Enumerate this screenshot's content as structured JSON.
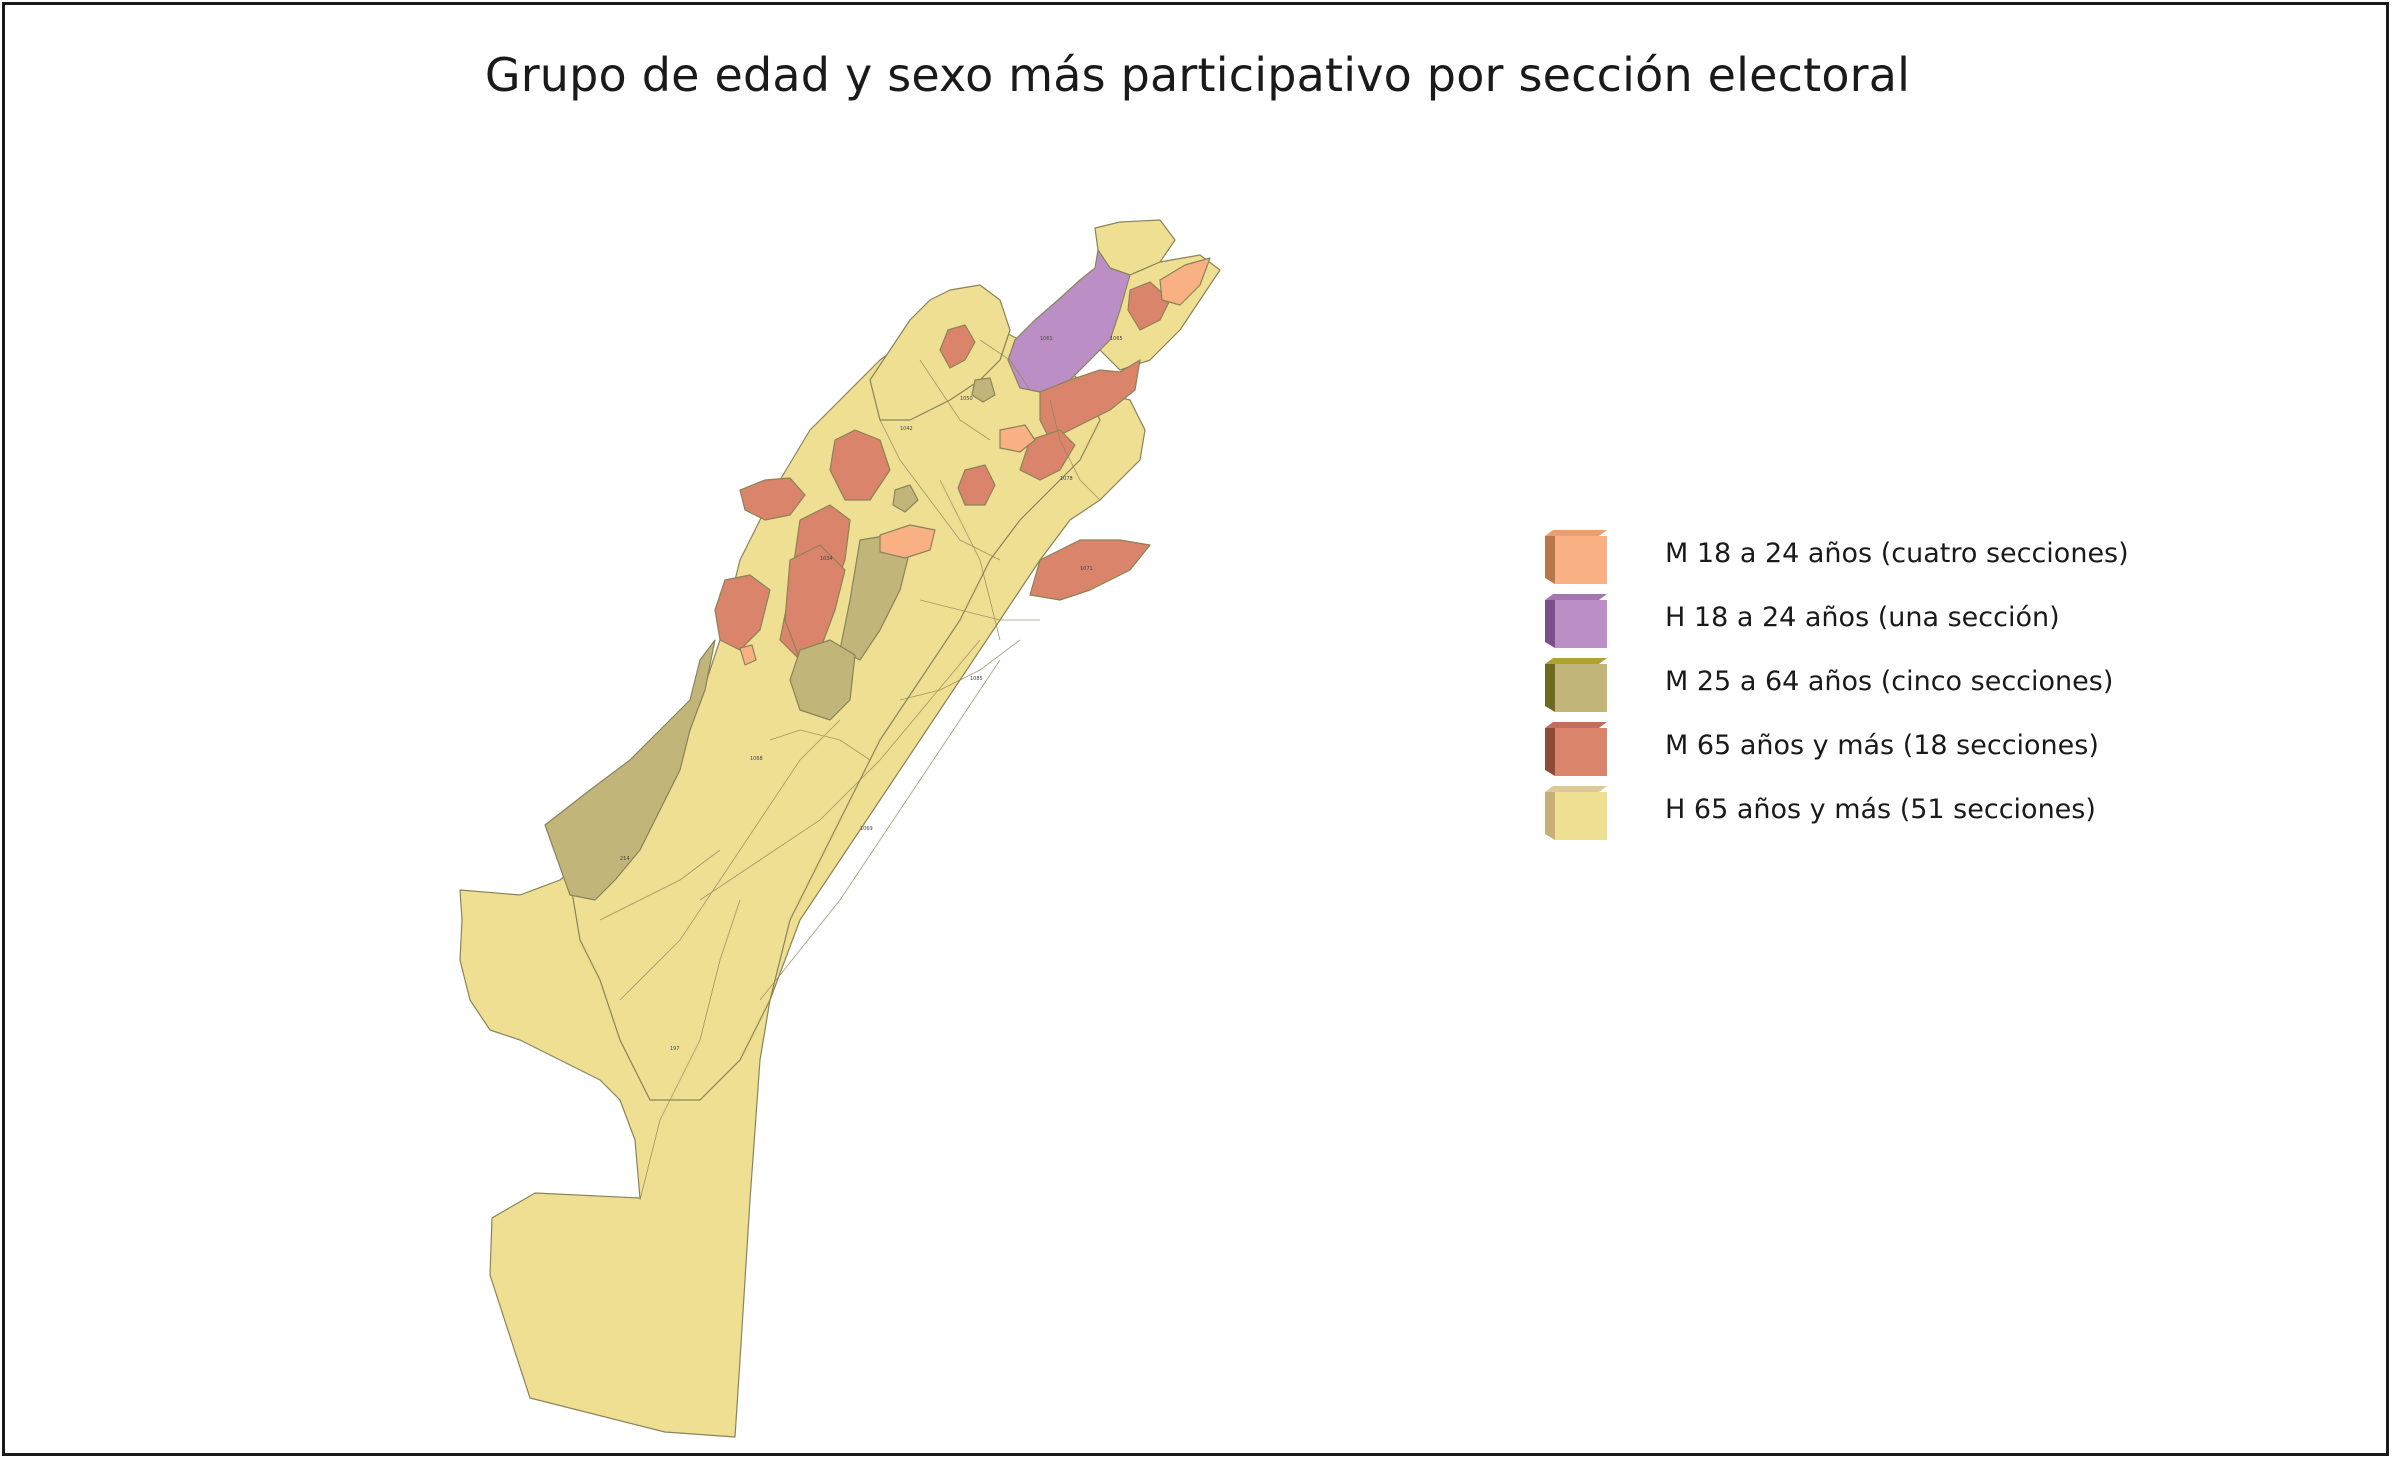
{
  "title": "Grupo de edad y sexo más participativo por sección electoral",
  "colors": {
    "m_18_24": "#f9b184",
    "h_18_24": "#bb8fc6",
    "m_25_64": "#c1b57a",
    "m_65": "#d9846b",
    "h_65": "#efdf93",
    "border": "#8a8358"
  },
  "legend": [
    {
      "key": "m_18_24",
      "label": "M 18 a 24 años (cuatro secciones)",
      "color": "#f9b184",
      "side": "#b87749",
      "top": "#e8a070"
    },
    {
      "key": "h_18_24",
      "label": "H 18 a 24 años (una sección)",
      "color": "#bb8fc6",
      "side": "#7a4f8c",
      "top": "#a577b2"
    },
    {
      "key": "m_25_64",
      "label": "M 25 a 64 años (cinco secciones)",
      "color": "#c1b57a",
      "side": "#6e6a21",
      "top": "#aea234"
    },
    {
      "key": "m_65",
      "label": "M 65 años y más (18 secciones)",
      "color": "#d9846b",
      "side": "#8c4a38",
      "top": "#c0705a"
    },
    {
      "key": "h_65",
      "label": "H 65 años y más (51 secciones)",
      "color": "#efdf93",
      "side": "#c9ae76",
      "top": "#ddc995"
    }
  ]
}
